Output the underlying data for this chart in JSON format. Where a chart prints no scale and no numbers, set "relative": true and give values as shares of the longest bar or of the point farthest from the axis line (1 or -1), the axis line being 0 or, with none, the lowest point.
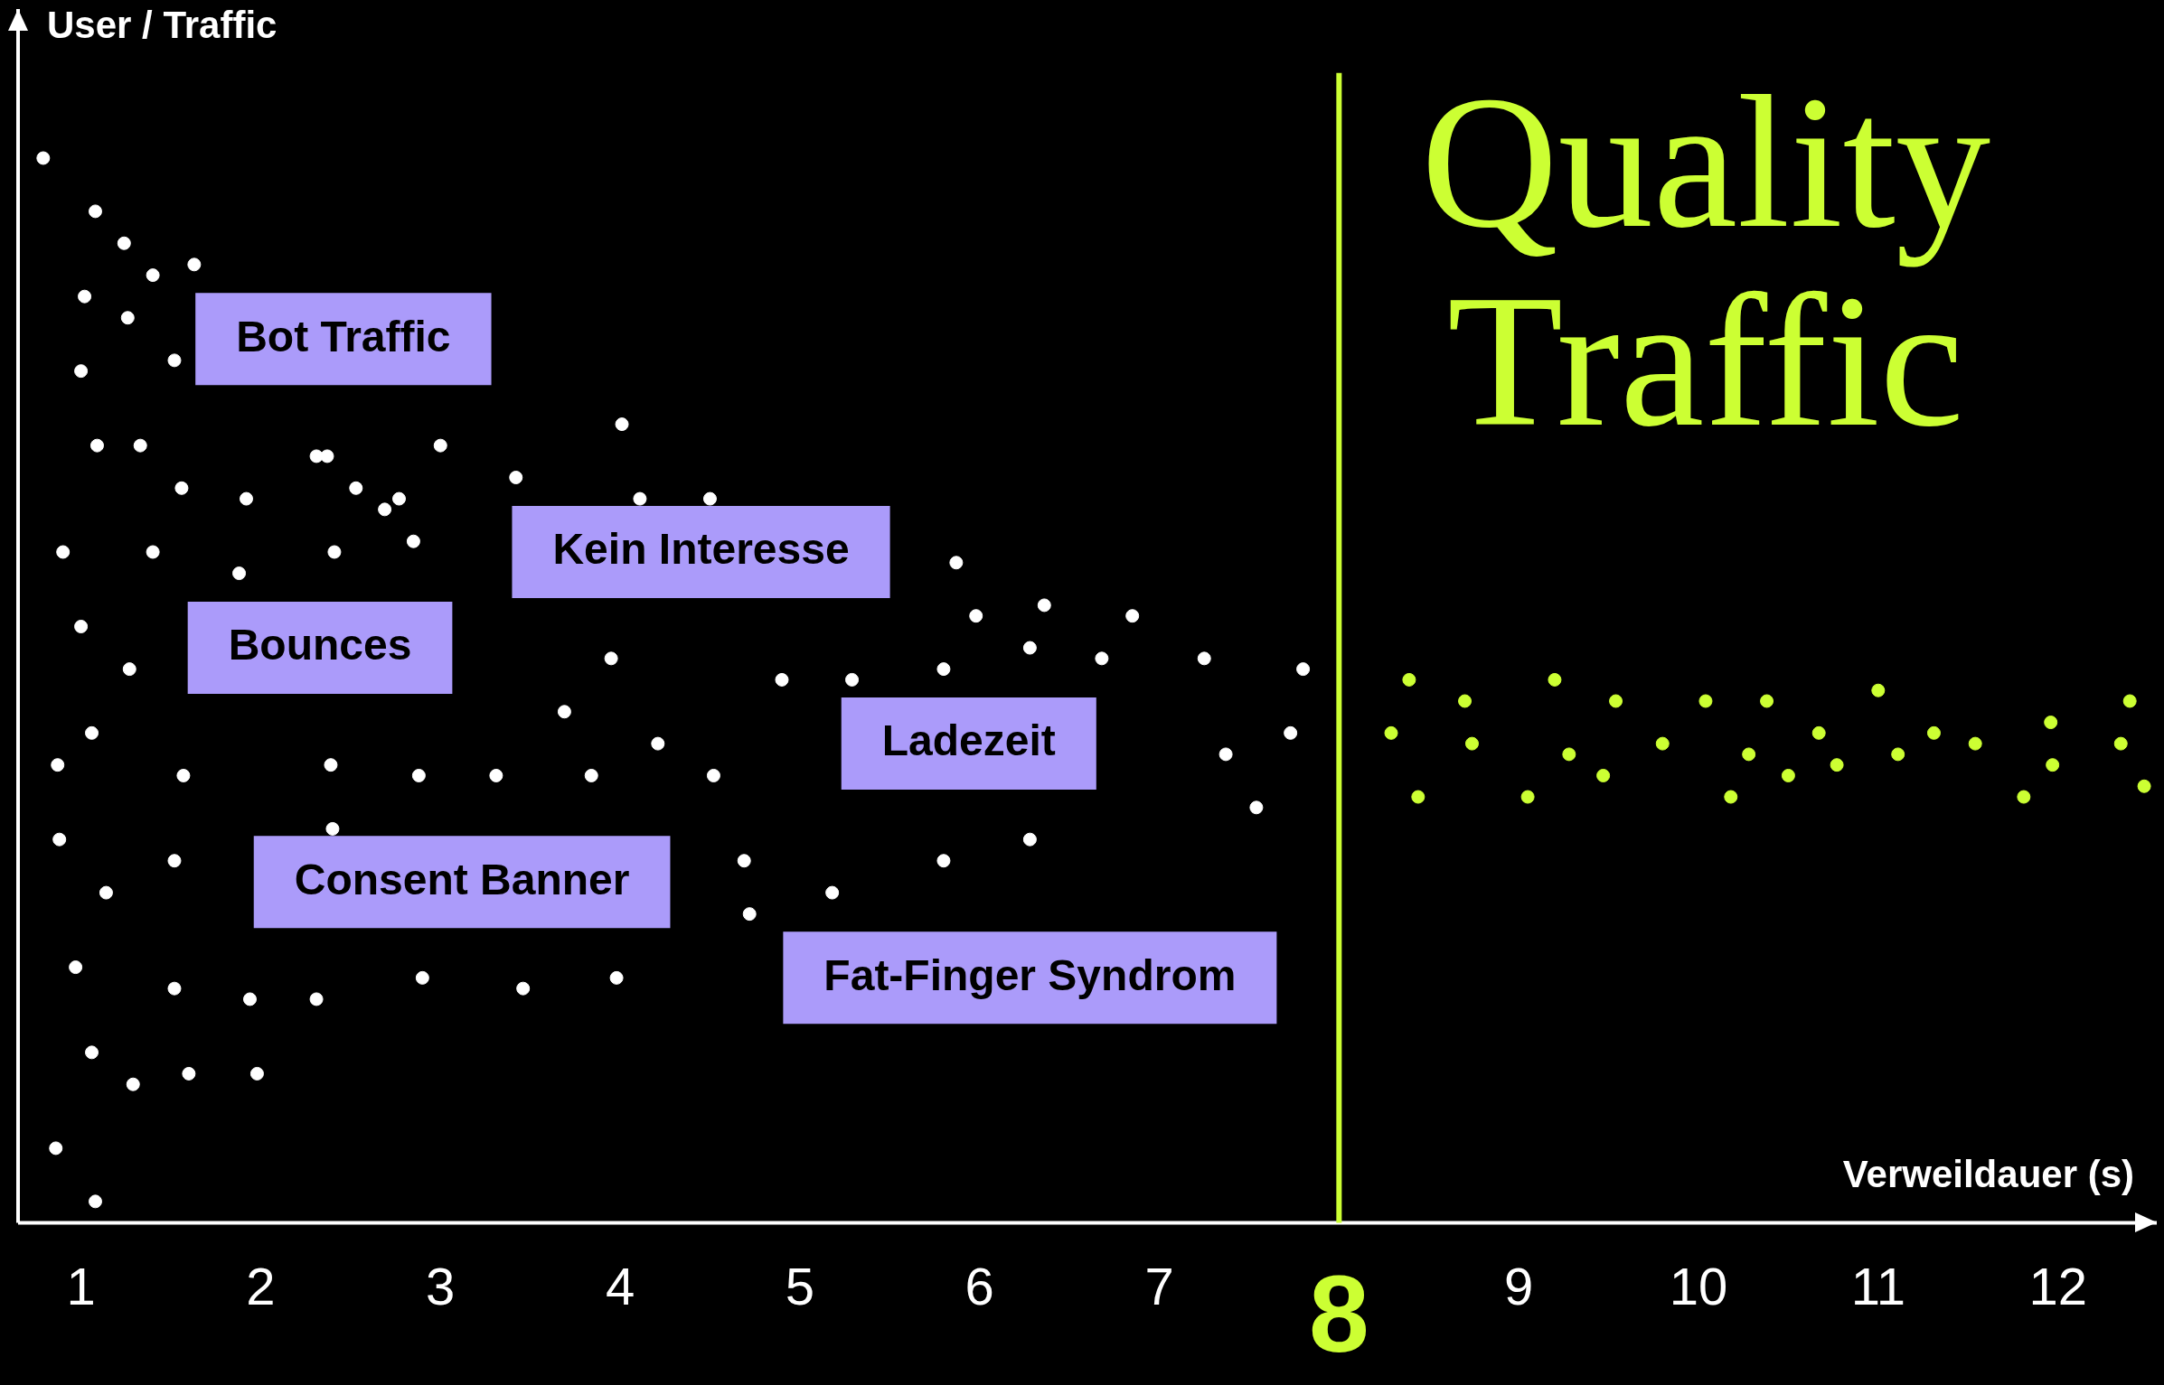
{
  "chart_data": {
    "type": "scatter",
    "relative": true,
    "xlabel": "Verweildauer (s)",
    "ylabel": "User / Traffic",
    "xlim": [
      0.65,
      12.55
    ],
    "xticks": [
      1,
      2,
      3,
      4,
      5,
      6,
      7,
      9,
      10,
      11,
      12
    ],
    "grid": false,
    "legend": false,
    "marker": "circle",
    "series": [
      {
        "color": "#ffffff",
        "x": [
          0.79,
          1.08,
          1.24,
          1.4,
          1.63,
          1.02,
          1.26,
          1.0,
          1.52,
          1.09,
          1.33,
          1.56,
          1.92,
          2.31,
          2.37,
          2.53,
          2.69,
          2.77,
          3.0,
          2.85,
          2.41,
          0.9,
          1.4,
          1.88,
          1.0,
          1.27,
          4.01,
          3.42,
          4.11,
          4.5,
          3.69,
          3.95,
          4.21,
          0.87,
          1.06,
          1.57,
          2.39,
          2.88,
          3.31,
          3.84,
          4.52,
          0.88,
          1.14,
          1.52,
          2.4,
          4.69,
          4.72,
          5.18,
          0.97,
          1.52,
          1.94,
          2.31,
          2.9,
          3.46,
          3.98,
          1.06,
          1.29,
          1.6,
          1.98,
          0.86,
          1.08,
          4.9,
          5.29,
          5.8,
          5.87,
          5.98,
          6.28,
          6.36,
          6.68,
          6.85,
          7.25,
          7.8,
          7.73,
          7.37,
          7.54,
          5.8,
          6.28
        ],
        "values": [
          1.0,
          0.95,
          0.92,
          0.89,
          0.9,
          0.87,
          0.85,
          0.8,
          0.81,
          0.73,
          0.73,
          0.69,
          0.68,
          0.72,
          0.72,
          0.69,
          0.67,
          0.68,
          0.73,
          0.64,
          0.63,
          0.63,
          0.63,
          0.61,
          0.56,
          0.52,
          0.75,
          0.7,
          0.68,
          0.68,
          0.48,
          0.53,
          0.45,
          0.43,
          0.46,
          0.42,
          0.43,
          0.42,
          0.42,
          0.42,
          0.42,
          0.36,
          0.31,
          0.34,
          0.37,
          0.34,
          0.29,
          0.31,
          0.24,
          0.22,
          0.21,
          0.21,
          0.23,
          0.22,
          0.23,
          0.16,
          0.13,
          0.14,
          0.14,
          0.07,
          0.02,
          0.51,
          0.51,
          0.52,
          0.62,
          0.57,
          0.54,
          0.58,
          0.53,
          0.57,
          0.53,
          0.52,
          0.46,
          0.44,
          0.39,
          0.34,
          0.36
        ]
      },
      {
        "color": "#ccff33",
        "x": [
          8.29,
          8.39,
          8.44,
          8.7,
          8.74,
          9.05,
          9.2,
          9.28,
          9.47,
          9.54,
          9.8,
          10.04,
          10.18,
          10.28,
          10.38,
          10.5,
          10.67,
          10.77,
          11.0,
          11.11,
          11.31,
          11.54,
          11.81,
          11.96,
          11.97,
          12.35,
          12.4,
          12.48
        ],
        "values": [
          0.46,
          0.51,
          0.4,
          0.49,
          0.45,
          0.4,
          0.51,
          0.44,
          0.42,
          0.49,
          0.45,
          0.49,
          0.4,
          0.44,
          0.49,
          0.42,
          0.46,
          0.43,
          0.5,
          0.44,
          0.46,
          0.45,
          0.4,
          0.47,
          0.43,
          0.45,
          0.49,
          0.41
        ]
      }
    ],
    "ref_lines": [
      {
        "axis": "x",
        "value": 8,
        "label": "8",
        "color": "#ccff33"
      }
    ],
    "annotations": [
      "Bot Traffic",
      "Bounces",
      "Kein Interesse",
      "Ladezeit",
      "Consent Banner",
      "Fat-Finger Syndrom",
      "Quality Traffic"
    ]
  }
}
